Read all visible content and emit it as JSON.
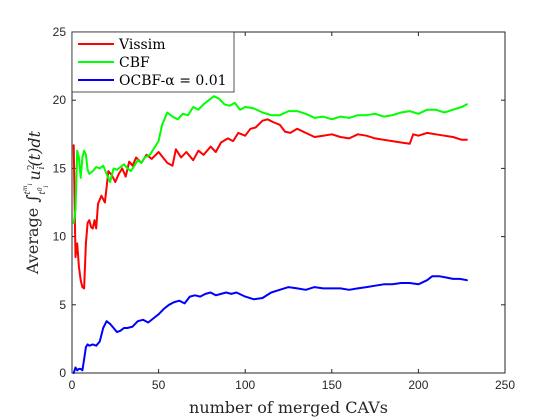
{
  "chart_data": {
    "type": "line",
    "xlabel": "number of merged CAVs",
    "ylabel": "Average ∫_{t_i^0}^{t_i^m} u_i^2(t) dt",
    "xlim": [
      0,
      250
    ],
    "ylim": [
      0,
      25
    ],
    "xticks": [
      0,
      50,
      100,
      150,
      200,
      250
    ],
    "yticks": [
      0,
      5,
      10,
      15,
      20,
      25
    ],
    "grid": false,
    "legend_position": "top-left",
    "series": [
      {
        "name": "Vissim",
        "color": "#ff0000",
        "x": [
          1,
          2,
          3,
          4,
          5,
          6,
          7,
          8,
          9,
          10,
          11,
          12,
          13,
          14,
          15,
          17,
          19,
          21,
          23,
          25,
          27,
          29,
          31,
          33,
          35,
          37,
          40,
          43,
          46,
          50,
          55,
          58,
          60,
          63,
          66,
          70,
          73,
          76,
          80,
          83,
          86,
          90,
          93,
          96,
          100,
          103,
          106,
          110,
          113,
          116,
          120,
          123,
          126,
          130,
          135,
          140,
          145,
          150,
          155,
          160,
          165,
          170,
          175,
          180,
          185,
          190,
          195,
          197,
          200,
          205,
          210,
          215,
          220,
          225,
          228
        ],
        "y": [
          16.7,
          8.5,
          9.5,
          7.8,
          6.8,
          6.3,
          6.2,
          9.5,
          11.0,
          11.2,
          10.7,
          10.6,
          11.2,
          10.6,
          12.4,
          13.0,
          12.5,
          14.8,
          14.5,
          14.0,
          14.6,
          15.0,
          14.4,
          15.5,
          15.2,
          15.8,
          15.4,
          16.0,
          15.7,
          16.2,
          15.4,
          15.2,
          16.4,
          15.8,
          16.2,
          15.6,
          16.3,
          16.0,
          16.6,
          16.2,
          16.9,
          17.2,
          17.0,
          17.6,
          17.4,
          17.9,
          18.0,
          18.5,
          18.6,
          18.4,
          18.2,
          17.7,
          17.6,
          17.9,
          17.6,
          17.3,
          17.4,
          17.5,
          17.3,
          17.2,
          17.5,
          17.4,
          17.2,
          17.1,
          17.0,
          16.9,
          16.8,
          17.5,
          17.4,
          17.6,
          17.5,
          17.4,
          17.3,
          17.1,
          17.1
        ]
      },
      {
        "name": "CBF",
        "color": "#00ff00",
        "x": [
          1,
          2,
          3,
          4,
          5,
          6,
          7,
          8,
          9,
          10,
          12,
          14,
          16,
          18,
          20,
          22,
          24,
          26,
          28,
          30,
          32,
          34,
          36,
          38,
          40,
          42,
          45,
          48,
          50,
          52,
          55,
          58,
          61,
          64,
          67,
          70,
          73,
          76,
          79,
          82,
          85,
          88,
          91,
          94,
          97,
          100,
          105,
          110,
          115,
          120,
          125,
          130,
          135,
          140,
          145,
          150,
          155,
          160,
          165,
          170,
          175,
          180,
          185,
          190,
          195,
          200,
          205,
          210,
          215,
          220,
          225,
          228
        ],
        "y": [
          11.0,
          12.0,
          16.3,
          15.8,
          14.3,
          15.8,
          16.3,
          16.0,
          14.9,
          14.6,
          14.8,
          15.1,
          15.0,
          15.2,
          14.6,
          14.0,
          15.0,
          14.9,
          15.1,
          15.3,
          15.0,
          14.8,
          15.2,
          15.6,
          15.4,
          15.8,
          16.0,
          16.6,
          17.0,
          18.2,
          19.1,
          18.8,
          18.6,
          19.0,
          18.9,
          19.5,
          19.3,
          19.7,
          20.0,
          20.3,
          20.1,
          19.7,
          19.6,
          19.8,
          19.3,
          19.5,
          19.4,
          19.1,
          18.9,
          18.9,
          19.2,
          19.2,
          19.0,
          18.7,
          18.8,
          18.6,
          18.8,
          18.7,
          18.9,
          18.9,
          19.0,
          18.8,
          18.9,
          19.1,
          19.2,
          19.0,
          19.3,
          19.3,
          19.1,
          19.3,
          19.5,
          19.7
        ]
      },
      {
        "name": "OCBF-α = 0.01",
        "color": "#0000ff",
        "x": [
          1,
          2,
          3,
          4,
          5,
          6,
          7,
          8,
          9,
          10,
          12,
          14,
          16,
          18,
          20,
          22,
          24,
          26,
          28,
          30,
          32,
          35,
          38,
          41,
          44,
          47,
          50,
          53,
          56,
          59,
          62,
          65,
          68,
          71,
          74,
          77,
          80,
          83,
          86,
          89,
          92,
          95,
          100,
          105,
          110,
          115,
          120,
          125,
          130,
          135,
          140,
          145,
          150,
          155,
          160,
          165,
          170,
          175,
          180,
          185,
          190,
          195,
          200,
          205,
          208,
          212,
          216,
          220,
          224,
          228
        ],
        "y": [
          0.0,
          0.4,
          0.2,
          0.3,
          0.3,
          0.2,
          1.0,
          1.9,
          2.1,
          2.0,
          2.1,
          2.0,
          2.3,
          3.3,
          3.8,
          3.6,
          3.3,
          3.0,
          3.1,
          3.3,
          3.3,
          3.4,
          3.8,
          3.9,
          3.7,
          4.0,
          4.3,
          4.7,
          5.0,
          5.2,
          5.3,
          5.1,
          5.6,
          5.7,
          5.6,
          5.8,
          5.9,
          5.7,
          5.8,
          5.9,
          5.8,
          5.9,
          5.6,
          5.4,
          5.5,
          5.9,
          6.1,
          6.3,
          6.2,
          6.1,
          6.3,
          6.2,
          6.2,
          6.2,
          6.1,
          6.2,
          6.3,
          6.4,
          6.5,
          6.5,
          6.6,
          6.6,
          6.5,
          6.8,
          7.1,
          7.1,
          7.0,
          6.9,
          6.9,
          6.8
        ]
      }
    ]
  }
}
